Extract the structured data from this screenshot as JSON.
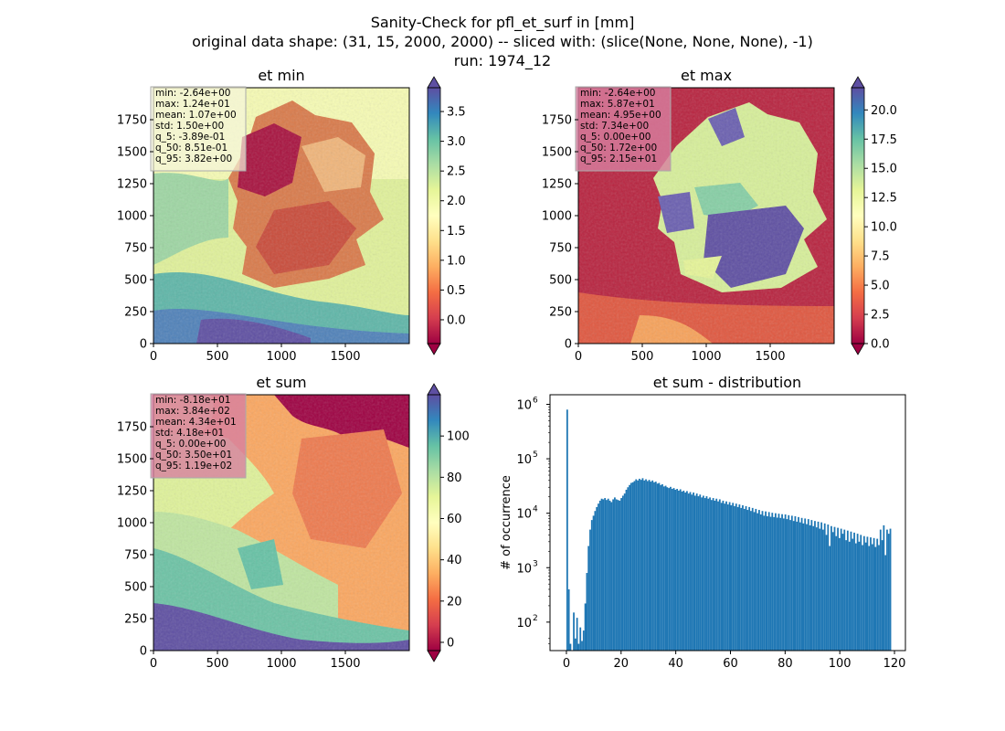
{
  "figure": {
    "title_lines": [
      "Sanity-Check for pfl_et_surf in [mm]",
      "original data shape: (31, 15, 2000, 2000) -- sliced with: (slice(None, None, None), -1)",
      "run: 1974_12"
    ]
  },
  "colors": {
    "axis": "#000000",
    "hist_bar": "#1f77b4",
    "stats_box_light": "#f5f5dc",
    "stats_box_pink": "#d77fa0",
    "cmap": [
      "#9e0142",
      "#d53e4f",
      "#f46d43",
      "#fdae61",
      "#fee08b",
      "#ffffbf",
      "#e6f598",
      "#abdda4",
      "#66c2a5",
      "#3288bd",
      "#5e4fa2"
    ]
  },
  "chart_data": [
    {
      "type": "heatmap",
      "title": "et min",
      "xlim": [
        0,
        2000
      ],
      "ylim": [
        0,
        2000
      ],
      "xticks": [
        "0",
        "500",
        "1000",
        "1500"
      ],
      "yticks": [
        "0",
        "250",
        "500",
        "750",
        "1000",
        "1250",
        "1500",
        "1750"
      ],
      "colormap": "Spectral",
      "colorbar": {
        "vmin": -0.4,
        "vmax": 3.9,
        "extend": "both",
        "ticks": [
          0.0,
          0.5,
          1.0,
          1.5,
          2.0,
          2.5,
          3.0,
          3.5
        ],
        "tick_labels": [
          "0.0",
          "0.5",
          "1.0",
          "1.5",
          "2.0",
          "2.5",
          "3.0",
          "3.5"
        ]
      },
      "stats": [
        "min: -2.64e+00",
        "max: 1.24e+01",
        "mean: 1.07e+00",
        "std: 1.50e+00",
        "q_5: -3.89e-01",
        "q_50: 8.51e-01",
        "q_95: 3.82e+00"
      ],
      "stats_box": "light"
    },
    {
      "type": "heatmap",
      "title": "et max",
      "xlim": [
        0,
        2000
      ],
      "ylim": [
        0,
        2000
      ],
      "xticks": [
        "0",
        "500",
        "1000",
        "1500"
      ],
      "yticks": [
        "0",
        "250",
        "500",
        "750",
        "1000",
        "1250",
        "1500",
        "1750"
      ],
      "colormap": "Spectral",
      "colorbar": {
        "vmin": 0.0,
        "vmax": 21.9,
        "extend": "both",
        "ticks": [
          0.0,
          2.5,
          5.0,
          7.5,
          10.0,
          12.5,
          15.0,
          17.5,
          20.0
        ],
        "tick_labels": [
          "0.0",
          "2.5",
          "5.0",
          "7.5",
          "10.0",
          "12.5",
          "15.0",
          "17.5",
          "20.0"
        ]
      },
      "stats": [
        "min: -2.64e+00",
        "max: 5.87e+01",
        "mean: 4.95e+00",
        "std: 7.34e+00",
        "q_5: 0.00e+00",
        "q_50: 1.72e+00",
        "q_95: 2.15e+01"
      ],
      "stats_box": "pink"
    },
    {
      "type": "heatmap",
      "title": "et sum",
      "xlim": [
        0,
        2000
      ],
      "ylim": [
        0,
        2000
      ],
      "xticks": [
        "0",
        "500",
        "1000",
        "1500"
      ],
      "yticks": [
        "0",
        "250",
        "500",
        "750",
        "1000",
        "1250",
        "1500",
        "1750"
      ],
      "colormap": "Spectral",
      "colorbar": {
        "vmin": -4,
        "vmax": 120,
        "extend": "both",
        "ticks": [
          0,
          20,
          40,
          60,
          80,
          100
        ],
        "tick_labels": [
          "0",
          "20",
          "40",
          "60",
          "80",
          "100"
        ]
      },
      "stats": [
        "min: -8.18e+01",
        "max: 3.84e+02",
        "mean: 4.34e+01",
        "std: 4.18e+01",
        "q_5: 0.00e+00",
        "q_50: 3.50e+01",
        "q_95: 1.19e+02"
      ],
      "stats_box": "pink"
    },
    {
      "type": "bar",
      "title": "et sum - distribution",
      "ylabel": "# of occurrence",
      "xlabel": "",
      "yscale": "log",
      "xlim": [
        -6,
        124
      ],
      "ylim": [
        30,
        1500000
      ],
      "xticks": [
        0,
        20,
        40,
        60,
        80,
        100,
        120
      ],
      "xtick_labels": [
        "0",
        "20",
        "40",
        "60",
        "80",
        "100",
        "120"
      ],
      "yticks": [
        100,
        1000,
        10000,
        100000,
        1000000
      ],
      "ytick_bases": [
        "10",
        "10",
        "10",
        "10",
        "10"
      ],
      "ytick_exponents": [
        "2",
        "3",
        "4",
        "5",
        "6"
      ],
      "bin_width": 0.6,
      "bins": [
        {
          "x": 0.0,
          "y": 800000
        },
        {
          "x": 0.6,
          "y": 400
        },
        {
          "x": 1.2,
          "y": 40
        },
        {
          "x": 2.4,
          "y": 150
        },
        {
          "x": 3.0,
          "y": 50
        },
        {
          "x": 3.6,
          "y": 120
        },
        {
          "x": 4.2,
          "y": 40
        },
        {
          "x": 4.8,
          "y": 80
        },
        {
          "x": 5.4,
          "y": 45
        },
        {
          "x": 6.0,
          "y": 70
        },
        {
          "x": 6.6,
          "y": 220
        },
        {
          "x": 7.2,
          "y": 800
        },
        {
          "x": 7.8,
          "y": 2500
        },
        {
          "x": 8.4,
          "y": 5000
        },
        {
          "x": 9.0,
          "y": 7500
        },
        {
          "x": 9.6,
          "y": 9000
        },
        {
          "x": 10.2,
          "y": 11000
        },
        {
          "x": 10.8,
          "y": 13000
        },
        {
          "x": 11.4,
          "y": 15000
        },
        {
          "x": 12.0,
          "y": 17000
        },
        {
          "x": 12.6,
          "y": 18500
        },
        {
          "x": 13.2,
          "y": 18000
        },
        {
          "x": 13.8,
          "y": 19000
        },
        {
          "x": 14.4,
          "y": 17500
        },
        {
          "x": 15.0,
          "y": 18500
        },
        {
          "x": 15.6,
          "y": 17000
        },
        {
          "x": 16.2,
          "y": 16000
        },
        {
          "x": 16.8,
          "y": 18000
        },
        {
          "x": 17.4,
          "y": 19500
        },
        {
          "x": 18.0,
          "y": 18000
        },
        {
          "x": 18.6,
          "y": 17500
        },
        {
          "x": 19.2,
          "y": 17000
        },
        {
          "x": 19.8,
          "y": 19000
        },
        {
          "x": 20.4,
          "y": 21000
        },
        {
          "x": 21.0,
          "y": 23000
        },
        {
          "x": 21.6,
          "y": 27000
        },
        {
          "x": 22.2,
          "y": 30000
        },
        {
          "x": 22.8,
          "y": 33000
        },
        {
          "x": 23.4,
          "y": 36000
        },
        {
          "x": 24.0,
          "y": 37000
        },
        {
          "x": 24.6,
          "y": 39000
        },
        {
          "x": 25.2,
          "y": 42000
        },
        {
          "x": 25.8,
          "y": 40000
        },
        {
          "x": 26.4,
          "y": 43000
        },
        {
          "x": 27.0,
          "y": 41000
        },
        {
          "x": 27.6,
          "y": 44000
        },
        {
          "x": 28.2,
          "y": 40000
        },
        {
          "x": 28.8,
          "y": 42000
        },
        {
          "x": 29.4,
          "y": 39000
        },
        {
          "x": 30.0,
          "y": 41000
        },
        {
          "x": 30.6,
          "y": 38000
        },
        {
          "x": 31.2,
          "y": 40000
        },
        {
          "x": 31.8,
          "y": 37000
        },
        {
          "x": 32.4,
          "y": 38000
        },
        {
          "x": 33.0,
          "y": 35000
        },
        {
          "x": 33.6,
          "y": 36000
        },
        {
          "x": 34.2,
          "y": 33000
        },
        {
          "x": 34.8,
          "y": 34000
        },
        {
          "x": 35.4,
          "y": 31000
        },
        {
          "x": 36.0,
          "y": 32000
        },
        {
          "x": 36.6,
          "y": 30000
        },
        {
          "x": 37.2,
          "y": 29000
        },
        {
          "x": 37.8,
          "y": 30500
        },
        {
          "x": 38.4,
          "y": 28000
        },
        {
          "x": 39.0,
          "y": 29000
        },
        {
          "x": 39.6,
          "y": 27000
        },
        {
          "x": 40.2,
          "y": 28000
        },
        {
          "x": 40.8,
          "y": 26000
        },
        {
          "x": 41.4,
          "y": 27500
        },
        {
          "x": 42.0,
          "y": 25000
        },
        {
          "x": 42.6,
          "y": 26000
        },
        {
          "x": 43.2,
          "y": 24000
        },
        {
          "x": 43.8,
          "y": 25500
        },
        {
          "x": 44.4,
          "y": 23000
        },
        {
          "x": 45.0,
          "y": 24500
        },
        {
          "x": 45.6,
          "y": 22000
        },
        {
          "x": 46.2,
          "y": 24000
        },
        {
          "x": 46.8,
          "y": 21000
        },
        {
          "x": 47.4,
          "y": 23000
        },
        {
          "x": 48.0,
          "y": 20500
        },
        {
          "x": 48.6,
          "y": 22000
        },
        {
          "x": 49.2,
          "y": 19500
        },
        {
          "x": 49.8,
          "y": 21000
        },
        {
          "x": 50.4,
          "y": 19000
        },
        {
          "x": 51.0,
          "y": 20500
        },
        {
          "x": 51.6,
          "y": 18500
        },
        {
          "x": 52.2,
          "y": 19500
        },
        {
          "x": 52.8,
          "y": 17500
        },
        {
          "x": 53.4,
          "y": 19000
        },
        {
          "x": 54.0,
          "y": 17000
        },
        {
          "x": 54.6,
          "y": 18500
        },
        {
          "x": 55.2,
          "y": 16500
        },
        {
          "x": 55.8,
          "y": 18000
        },
        {
          "x": 56.4,
          "y": 15500
        },
        {
          "x": 57.0,
          "y": 17000
        },
        {
          "x": 57.6,
          "y": 15000
        },
        {
          "x": 58.2,
          "y": 16500
        },
        {
          "x": 58.8,
          "y": 14500
        },
        {
          "x": 59.4,
          "y": 16000
        },
        {
          "x": 60.0,
          "y": 14000
        },
        {
          "x": 60.6,
          "y": 15500
        },
        {
          "x": 61.2,
          "y": 13500
        },
        {
          "x": 61.8,
          "y": 15000
        },
        {
          "x": 62.4,
          "y": 13000
        },
        {
          "x": 63.0,
          "y": 14500
        },
        {
          "x": 63.6,
          "y": 12500
        },
        {
          "x": 64.2,
          "y": 14000
        },
        {
          "x": 64.8,
          "y": 12000
        },
        {
          "x": 65.4,
          "y": 13500
        },
        {
          "x": 66.0,
          "y": 11500
        },
        {
          "x": 66.6,
          "y": 13000
        },
        {
          "x": 67.2,
          "y": 11000
        },
        {
          "x": 67.8,
          "y": 12500
        },
        {
          "x": 68.4,
          "y": 10500
        },
        {
          "x": 69.0,
          "y": 12000
        },
        {
          "x": 69.6,
          "y": 10000
        },
        {
          "x": 70.2,
          "y": 11500
        },
        {
          "x": 70.8,
          "y": 9500
        },
        {
          "x": 71.4,
          "y": 11000
        },
        {
          "x": 72.0,
          "y": 9000
        },
        {
          "x": 72.6,
          "y": 10800
        },
        {
          "x": 73.2,
          "y": 8800
        },
        {
          "x": 73.8,
          "y": 10500
        },
        {
          "x": 74.4,
          "y": 8600
        },
        {
          "x": 75.0,
          "y": 10200
        },
        {
          "x": 75.6,
          "y": 8500
        },
        {
          "x": 76.2,
          "y": 10000
        },
        {
          "x": 76.8,
          "y": 8300
        },
        {
          "x": 77.4,
          "y": 9800
        },
        {
          "x": 78.0,
          "y": 8200
        },
        {
          "x": 78.6,
          "y": 9600
        },
        {
          "x": 79.2,
          "y": 8000
        },
        {
          "x": 79.8,
          "y": 9500
        },
        {
          "x": 80.4,
          "y": 7800
        },
        {
          "x": 81.0,
          "y": 9200
        },
        {
          "x": 81.6,
          "y": 7500
        },
        {
          "x": 82.2,
          "y": 9000
        },
        {
          "x": 82.8,
          "y": 7200
        },
        {
          "x": 83.4,
          "y": 8800
        },
        {
          "x": 84.0,
          "y": 7000
        },
        {
          "x": 84.6,
          "y": 8500
        },
        {
          "x": 85.2,
          "y": 6800
        },
        {
          "x": 85.8,
          "y": 8200
        },
        {
          "x": 86.4,
          "y": 6500
        },
        {
          "x": 87.0,
          "y": 8000
        },
        {
          "x": 87.6,
          "y": 6300
        },
        {
          "x": 88.2,
          "y": 7800
        },
        {
          "x": 88.8,
          "y": 6000
        },
        {
          "x": 89.4,
          "y": 7500
        },
        {
          "x": 90.0,
          "y": 5800
        },
        {
          "x": 90.6,
          "y": 7200
        },
        {
          "x": 91.2,
          "y": 5500
        },
        {
          "x": 91.8,
          "y": 7000
        },
        {
          "x": 92.4,
          "y": 5200
        },
        {
          "x": 93.0,
          "y": 6800
        },
        {
          "x": 93.6,
          "y": 5000
        },
        {
          "x": 94.2,
          "y": 6500
        },
        {
          "x": 94.8,
          "y": 4000
        },
        {
          "x": 95.4,
          "y": 6200
        },
        {
          "x": 96.0,
          "y": 2500
        },
        {
          "x": 96.6,
          "y": 5800
        },
        {
          "x": 97.2,
          "y": 4500
        },
        {
          "x": 97.8,
          "y": 5600
        },
        {
          "x": 98.4,
          "y": 3800
        },
        {
          "x": 99.0,
          "y": 5400
        },
        {
          "x": 99.6,
          "y": 3500
        },
        {
          "x": 100.2,
          "y": 5200
        },
        {
          "x": 100.8,
          "y": 4200
        },
        {
          "x": 101.4,
          "y": 5000
        },
        {
          "x": 102.0,
          "y": 3200
        },
        {
          "x": 102.6,
          "y": 4800
        },
        {
          "x": 103.2,
          "y": 3000
        },
        {
          "x": 103.8,
          "y": 4600
        },
        {
          "x": 104.4,
          "y": 3400
        },
        {
          "x": 105.0,
          "y": 4400
        },
        {
          "x": 105.6,
          "y": 2800
        },
        {
          "x": 106.2,
          "y": 4200
        },
        {
          "x": 106.8,
          "y": 3000
        },
        {
          "x": 107.4,
          "y": 4000
        },
        {
          "x": 108.0,
          "y": 2600
        },
        {
          "x": 108.6,
          "y": 3800
        },
        {
          "x": 109.2,
          "y": 2900
        },
        {
          "x": 109.8,
          "y": 3700
        },
        {
          "x": 110.4,
          "y": 2500
        },
        {
          "x": 111.0,
          "y": 3600
        },
        {
          "x": 111.6,
          "y": 2700
        },
        {
          "x": 112.2,
          "y": 3500
        },
        {
          "x": 112.8,
          "y": 2400
        },
        {
          "x": 113.4,
          "y": 3400
        },
        {
          "x": 114.0,
          "y": 2600
        },
        {
          "x": 114.6,
          "y": 5000
        },
        {
          "x": 115.2,
          "y": 3200
        },
        {
          "x": 115.8,
          "y": 6000
        },
        {
          "x": 116.4,
          "y": 1700
        },
        {
          "x": 117.0,
          "y": 5000
        },
        {
          "x": 117.6,
          "y": 4200
        },
        {
          "x": 118.2,
          "y": 5200
        }
      ]
    }
  ]
}
